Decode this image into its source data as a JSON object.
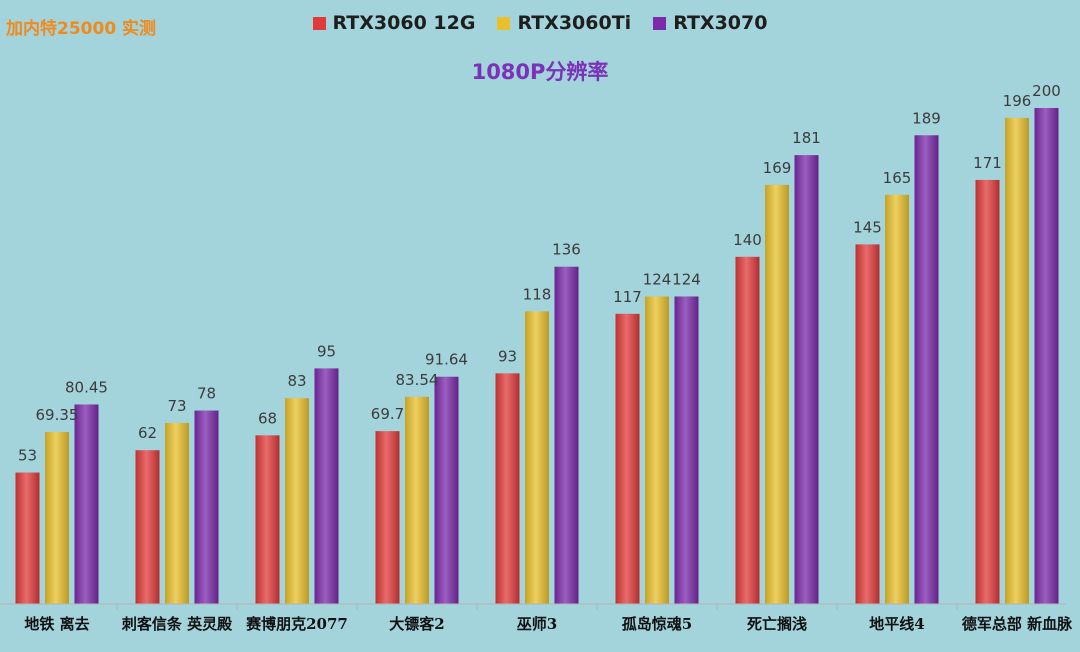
{
  "corner_note": "加内特25000 实测",
  "chart_data": {
    "type": "bar",
    "title": "1080P分辨率",
    "categories": [
      "地铁 离去",
      "刺客信条 英灵殿",
      "赛博朋克2077",
      "大镖客2",
      "巫师3",
      "孤岛惊魂5",
      "死亡搁浅",
      "地平线4",
      "德军总部 新血脉"
    ],
    "series": [
      {
        "name": "RTX3060 12G",
        "color": "#e03a3a",
        "values": [
          53,
          62,
          68,
          69.7,
          93,
          117,
          140,
          145,
          171
        ]
      },
      {
        "name": "RTX3060Ti",
        "color": "#e8c02c",
        "values": [
          69.35,
          73,
          83,
          83.54,
          118,
          124,
          169,
          165,
          196
        ]
      },
      {
        "name": "RTX3070",
        "color": "#7a2aaa",
        "values": [
          80.45,
          78,
          95,
          91.64,
          136,
          124,
          181,
          189,
          200
        ]
      }
    ],
    "value_labels": [
      [
        "53",
        "62",
        "68",
        "69.7",
        "93",
        "117",
        "140",
        "145",
        "171"
      ],
      [
        "69.35",
        "73",
        "83",
        "83.54",
        "118",
        "124",
        "169",
        "165",
        "196"
      ],
      [
        "80.45",
        "78",
        "95",
        "91.64",
        "136",
        "124",
        "181",
        "189",
        "200"
      ]
    ],
    "ylim": [
      0,
      200
    ],
    "xlabel": "",
    "ylabel": "",
    "legend_position": "top-center",
    "grid": false
  }
}
